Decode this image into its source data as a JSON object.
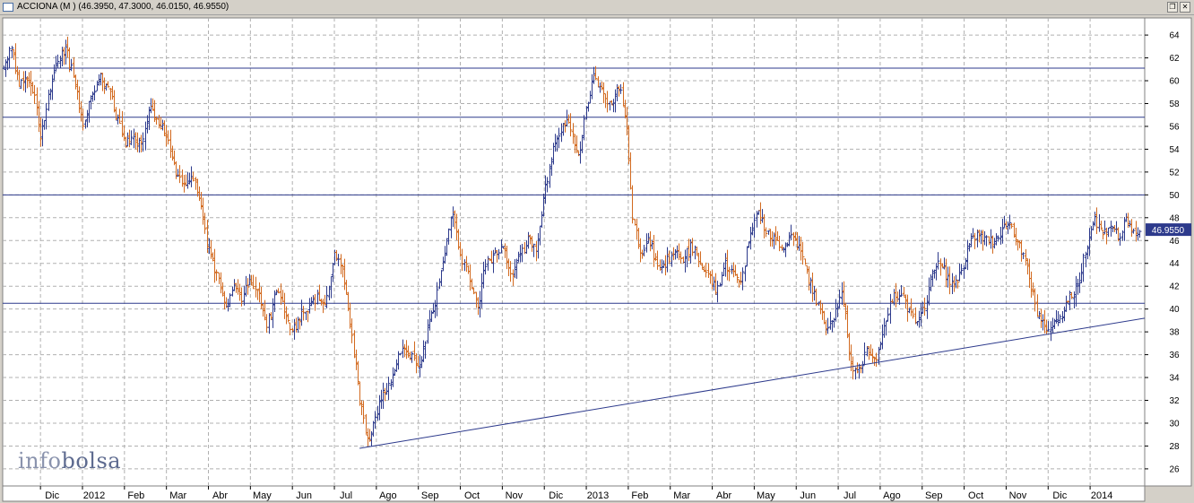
{
  "window": {
    "title": "ACCIONA (M ) (46.3950, 47.3000, 46.0150, 46.9550)",
    "icon": "chart-window-icon",
    "restore_glyph": "❐",
    "close_glyph": "✕"
  },
  "brand": {
    "part1": "info",
    "part2": "bolsa"
  },
  "colors": {
    "up": "#2d3a8c",
    "down": "#d2691e",
    "line": "#2d3a8c",
    "grid": "#b0b0b0",
    "last_price_bg": "#2d3a8c"
  },
  "chart_data": {
    "type": "bar",
    "subtype": "ohlc",
    "instrument": "ACCIONA",
    "ohlc_last": {
      "open": 46.395,
      "high": 47.3,
      "low": 46.015,
      "close": 46.955
    },
    "last_price_label": "46.9550",
    "ylim": [
      24.5,
      65.5
    ],
    "y_ticks": [
      26,
      28,
      30,
      32,
      34,
      36,
      38,
      40,
      42,
      44,
      46,
      48,
      50,
      52,
      54,
      56,
      58,
      60,
      62,
      64
    ],
    "x_ticks": [
      {
        "label": "Dic",
        "month": 0
      },
      {
        "label": "2012",
        "month": 1
      },
      {
        "label": "Feb",
        "month": 2
      },
      {
        "label": "Mar",
        "month": 3
      },
      {
        "label": "Abr",
        "month": 4
      },
      {
        "label": "May",
        "month": 5
      },
      {
        "label": "Jun",
        "month": 6
      },
      {
        "label": "Jul",
        "month": 7
      },
      {
        "label": "Ago",
        "month": 8
      },
      {
        "label": "Sep",
        "month": 9
      },
      {
        "label": "Oct",
        "month": 10
      },
      {
        "label": "Nov",
        "month": 11
      },
      {
        "label": "Dic",
        "month": 12
      },
      {
        "label": "2013",
        "month": 13
      },
      {
        "label": "Feb",
        "month": 14
      },
      {
        "label": "Mar",
        "month": 15
      },
      {
        "label": "Abr",
        "month": 16
      },
      {
        "label": "May",
        "month": 17
      },
      {
        "label": "Jun",
        "month": 18
      },
      {
        "label": "Jul",
        "month": 19
      },
      {
        "label": "Ago",
        "month": 20
      },
      {
        "label": "Sep",
        "month": 21
      },
      {
        "label": "Oct",
        "month": 22
      },
      {
        "label": "Nov",
        "month": 23
      },
      {
        "label": "Dic",
        "month": 24
      },
      {
        "label": "2014",
        "month": 25
      }
    ],
    "x_range_months": [
      -0.9,
      26.3
    ],
    "horizontal_levels": [
      61.1,
      56.8,
      50.0,
      40.5
    ],
    "trendline": {
      "from": {
        "month": 7.6,
        "price": 27.8
      },
      "to": {
        "month": 26.3,
        "price": 39.2
      }
    },
    "price_path": [
      [
        -0.9,
        61.0
      ],
      [
        -0.7,
        63.0
      ],
      [
        -0.5,
        59.5
      ],
      [
        -0.3,
        60.5
      ],
      [
        -0.1,
        58.0
      ],
      [
        0.0,
        55.0
      ],
      [
        0.2,
        59.0
      ],
      [
        0.4,
        61.5
      ],
      [
        0.6,
        62.8
      ],
      [
        0.8,
        60.0
      ],
      [
        1.0,
        56.0
      ],
      [
        1.2,
        58.5
      ],
      [
        1.4,
        60.5
      ],
      [
        1.6,
        59.5
      ],
      [
        1.8,
        57.0
      ],
      [
        2.0,
        54.5
      ],
      [
        2.2,
        55.0
      ],
      [
        2.4,
        54.5
      ],
      [
        2.6,
        57.5
      ],
      [
        2.8,
        56.5
      ],
      [
        3.0,
        55.0
      ],
      [
        3.2,
        52.0
      ],
      [
        3.4,
        50.5
      ],
      [
        3.6,
        52.0
      ],
      [
        3.8,
        49.0
      ],
      [
        4.0,
        45.0
      ],
      [
        4.2,
        43.0
      ],
      [
        4.4,
        40.0
      ],
      [
        4.6,
        42.5
      ],
      [
        4.8,
        41.0
      ],
      [
        5.0,
        42.5
      ],
      [
        5.2,
        41.0
      ],
      [
        5.4,
        38.5
      ],
      [
        5.6,
        41.5
      ],
      [
        5.8,
        40.0
      ],
      [
        6.0,
        38.0
      ],
      [
        6.2,
        39.5
      ],
      [
        6.4,
        40.0
      ],
      [
        6.6,
        41.0
      ],
      [
        6.8,
        40.5
      ],
      [
        7.0,
        45.0
      ],
      [
        7.2,
        43.0
      ],
      [
        7.4,
        38.0
      ],
      [
        7.6,
        32.0
      ],
      [
        7.8,
        28.0
      ],
      [
        8.0,
        31.0
      ],
      [
        8.2,
        33.0
      ],
      [
        8.4,
        34.0
      ],
      [
        8.6,
        37.0
      ],
      [
        8.8,
        36.0
      ],
      [
        9.0,
        34.5
      ],
      [
        9.2,
        38.0
      ],
      [
        9.4,
        40.5
      ],
      [
        9.6,
        44.5
      ],
      [
        9.8,
        48.5
      ],
      [
        10.0,
        44.5
      ],
      [
        10.2,
        43.0
      ],
      [
        10.4,
        40.0
      ],
      [
        10.6,
        44.0
      ],
      [
        10.8,
        44.5
      ],
      [
        11.0,
        45.5
      ],
      [
        11.2,
        43.0
      ],
      [
        11.4,
        44.5
      ],
      [
        11.6,
        46.0
      ],
      [
        11.8,
        45.5
      ],
      [
        12.0,
        50.0
      ],
      [
        12.2,
        54.0
      ],
      [
        12.4,
        56.0
      ],
      [
        12.6,
        56.5
      ],
      [
        12.8,
        53.0
      ],
      [
        13.0,
        58.0
      ],
      [
        13.2,
        60.5
      ],
      [
        13.4,
        58.5
      ],
      [
        13.6,
        57.5
      ],
      [
        13.8,
        60.0
      ],
      [
        13.95,
        56.0
      ],
      [
        14.1,
        48.0
      ],
      [
        14.3,
        45.0
      ],
      [
        14.5,
        46.0
      ],
      [
        14.7,
        43.5
      ],
      [
        14.9,
        44.0
      ],
      [
        15.1,
        45.5
      ],
      [
        15.3,
        44.5
      ],
      [
        15.5,
        45.5
      ],
      [
        15.7,
        44.0
      ],
      [
        15.9,
        43.0
      ],
      [
        16.1,
        41.5
      ],
      [
        16.3,
        44.0
      ],
      [
        16.5,
        43.0
      ],
      [
        16.7,
        42.5
      ],
      [
        16.9,
        47.0
      ],
      [
        17.1,
        48.5
      ],
      [
        17.3,
        46.5
      ],
      [
        17.5,
        46.0
      ],
      [
        17.7,
        45.5
      ],
      [
        17.9,
        46.5
      ],
      [
        18.1,
        45.0
      ],
      [
        18.3,
        42.5
      ],
      [
        18.5,
        40.5
      ],
      [
        18.7,
        38.5
      ],
      [
        18.9,
        39.5
      ],
      [
        19.1,
        41.5
      ],
      [
        19.3,
        35.0
      ],
      [
        19.5,
        34.5
      ],
      [
        19.7,
        36.5
      ],
      [
        19.9,
        35.5
      ],
      [
        20.1,
        39.0
      ],
      [
        20.3,
        41.0
      ],
      [
        20.5,
        41.5
      ],
      [
        20.7,
        39.5
      ],
      [
        20.9,
        38.5
      ],
      [
        21.1,
        41.0
      ],
      [
        21.3,
        44.0
      ],
      [
        21.5,
        43.5
      ],
      [
        21.7,
        42.0
      ],
      [
        21.9,
        43.0
      ],
      [
        22.1,
        45.5
      ],
      [
        22.3,
        46.5
      ],
      [
        22.5,
        46.0
      ],
      [
        22.7,
        46.0
      ],
      [
        22.9,
        47.0
      ],
      [
        23.1,
        47.5
      ],
      [
        23.3,
        45.5
      ],
      [
        23.5,
        43.5
      ],
      [
        23.7,
        40.0
      ],
      [
        23.9,
        38.5
      ],
      [
        24.1,
        38.5
      ],
      [
        24.3,
        39.5
      ],
      [
        24.5,
        41.0
      ],
      [
        24.7,
        42.0
      ],
      [
        24.9,
        45.5
      ],
      [
        25.1,
        48.0
      ],
      [
        25.3,
        46.5
      ],
      [
        25.5,
        47.5
      ],
      [
        25.7,
        46.0
      ],
      [
        25.85,
        48.5
      ],
      [
        26.0,
        46.5
      ],
      [
        26.2,
        46.955
      ]
    ]
  }
}
